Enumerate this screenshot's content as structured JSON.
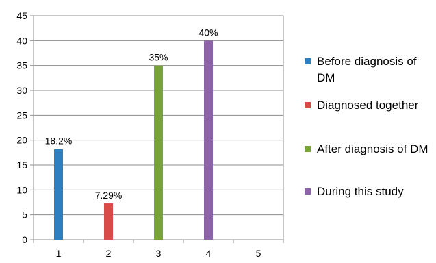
{
  "chart_data": {
    "type": "bar",
    "categories": [
      "1",
      "2",
      "3",
      "4",
      "5"
    ],
    "ylim": [
      0,
      45
    ],
    "yticks": [
      0,
      5,
      10,
      15,
      20,
      25,
      30,
      35,
      40,
      45
    ],
    "grid": true,
    "legend_position": "right",
    "title": "",
    "xlabel": "",
    "ylabel": "",
    "series": [
      {
        "name": "Before diagnosis of DM",
        "color": "#2e7fc0",
        "category": "1",
        "value": 18.2,
        "label": "18.2%"
      },
      {
        "name": "Diagnosed together",
        "color": "#d94b48",
        "category": "2",
        "value": 7.29,
        "label": "7.29%"
      },
      {
        "name": "After diagnosis of DM",
        "color": "#78a33a",
        "category": "3",
        "value": 35,
        "label": "35%"
      },
      {
        "name": "During this study",
        "color": "#8c63a8",
        "category": "4",
        "value": 40,
        "label": "40%"
      }
    ]
  }
}
